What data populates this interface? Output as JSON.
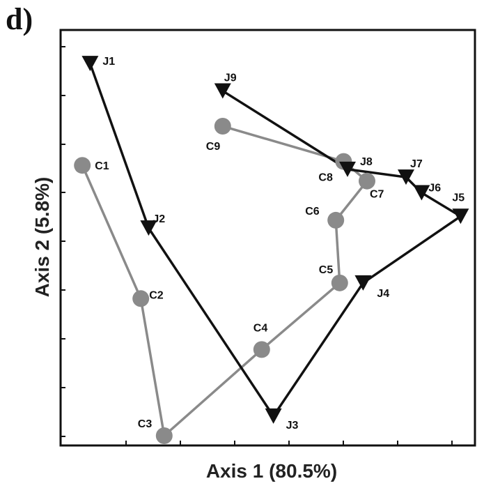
{
  "panel_label": "d)",
  "chart_data": {
    "type": "scatter",
    "title": "",
    "xlabel": "Axis 1 (80.5%)",
    "ylabel": "Axis 2 (5.8%)",
    "xlim": [
      0,
      100
    ],
    "ylim": [
      0,
      100
    ],
    "grid": false,
    "colors": {
      "C": "#8a8a8a",
      "J": "#111111"
    },
    "series": [
      {
        "name": "C",
        "marker": "circle",
        "points": [
          {
            "label": "C1",
            "x": 2,
            "y": 69
          },
          {
            "label": "C2",
            "x": 17,
            "y": 35
          },
          {
            "label": "C3",
            "x": 23,
            "y": 0
          },
          {
            "label": "C4",
            "x": 48,
            "y": 22
          },
          {
            "label": "C5",
            "x": 68,
            "y": 39
          },
          {
            "label": "C6",
            "x": 67,
            "y": 55
          },
          {
            "label": "C7",
            "x": 75,
            "y": 65
          },
          {
            "label": "C8",
            "x": 69,
            "y": 70
          },
          {
            "label": "C9",
            "x": 38,
            "y": 79
          }
        ]
      },
      {
        "name": "J",
        "marker": "triangle-down",
        "points": [
          {
            "label": "J1",
            "x": 4,
            "y": 95
          },
          {
            "label": "J2",
            "x": 19,
            "y": 53
          },
          {
            "label": "J3",
            "x": 51,
            "y": 5
          },
          {
            "label": "J4",
            "x": 74,
            "y": 39
          },
          {
            "label": "J5",
            "x": 99,
            "y": 56
          },
          {
            "label": "J6",
            "x": 89,
            "y": 62
          },
          {
            "label": "J7",
            "x": 85,
            "y": 66
          },
          {
            "label": "J8",
            "x": 70,
            "y": 68
          },
          {
            "label": "J9",
            "x": 38,
            "y": 88
          }
        ]
      }
    ]
  }
}
